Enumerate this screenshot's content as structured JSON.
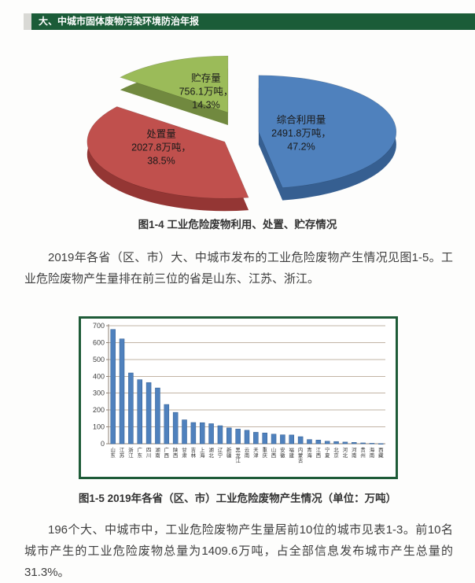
{
  "header": {
    "title": "大、中城市固体废物污染环境防治年报"
  },
  "captions": {
    "pie": "图1-4  工业危险废物利用、处置、贮存情况",
    "bar": "图1-5 2019年各省（区、市）工业危险废物产生情况（单位：万吨）"
  },
  "paragraphs": {
    "p1": "2019年各省（区、市）大、中城市发布的工业危险废物产生情况见图1-5。工业危险废物产生量排在前三位的省是山东、江苏、浙江。",
    "p2": "196个大、中城市中，工业危险废物产生量居前10位的城市见表1-3。前10名城市产生的工业危险废物总量为1409.6万吨，占全部信息发布城市产生总量的31.3%。"
  },
  "colors": {
    "header_green": "#1b5c38",
    "box_border_green": "#1e5b38",
    "text_dark": "#3f3f3f"
  },
  "chart_data": [
    {
      "type": "pie",
      "title": "工业危险废物利用、处置、贮存情况",
      "unit": "万吨",
      "effect": "3d-exploded",
      "slices": [
        {
          "label": "综合利用量",
          "amount_text": "2491.8万吨，",
          "value": 2491.8,
          "percent": "47.2%",
          "color": "#4f81bd",
          "side_color": "#365f91"
        },
        {
          "label": "处置量",
          "amount_text": "2027.8万吨，",
          "value": 2027.8,
          "percent": "38.5%",
          "color": "#c0504d",
          "side_color": "#943634"
        },
        {
          "label": "贮存量",
          "amount_text": "756.1万吨，",
          "value": 756.1,
          "percent": "14.3%",
          "color": "#9bbb59",
          "side_color": "#71893f"
        }
      ]
    },
    {
      "type": "bar",
      "title": "2019年各省（区、市）工业危险废物产生情况",
      "unit": "万吨",
      "categories": [
        "山东",
        "江苏",
        "浙江",
        "广东",
        "四川",
        "湖南",
        "广西",
        "陕西",
        "甘肃",
        "吉林",
        "上海",
        "湖北",
        "辽宁",
        "新疆",
        "黑龙江",
        "云南",
        "天津",
        "重庆",
        "山西",
        "安徽",
        "福建",
        "内蒙古",
        "青海",
        "江西",
        "宁夏",
        "北京",
        "河北",
        "河南",
        "贵州",
        "海南",
        "西藏"
      ],
      "values": [
        678,
        622,
        420,
        380,
        363,
        331,
        233,
        186,
        142,
        126,
        125,
        119,
        107,
        94,
        87,
        80,
        68,
        64,
        57,
        53,
        52,
        42,
        25,
        22,
        15,
        13,
        10,
        8,
        5,
        3,
        1
      ],
      "ylim": [
        0,
        700
      ],
      "ytick_step": 100,
      "grid": true,
      "legend": "none",
      "bar_color": "#4f81bd",
      "bar_edge_color": "#2f5b8f"
    }
  ]
}
